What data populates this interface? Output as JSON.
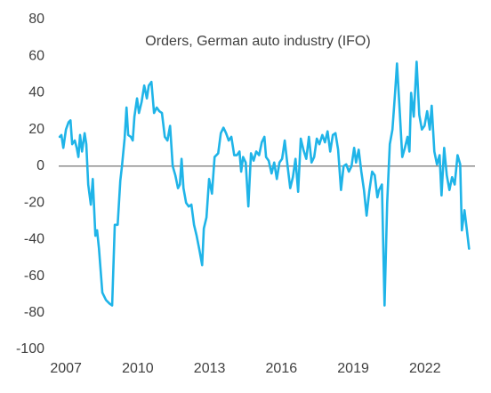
{
  "chart_data": {
    "type": "line",
    "title": "Orders, German auto industry (IFO)",
    "xlim": [
      2006.4,
      2024.2
    ],
    "xticks": [
      2007,
      2010,
      2013,
      2016,
      2019,
      2022
    ],
    "ylim": [
      -100,
      80
    ],
    "yticks": [
      -100,
      -80,
      -60,
      -40,
      -20,
      0,
      20,
      40,
      60,
      80
    ],
    "zero_line": true,
    "grid": false,
    "series": [
      {
        "color": "#1fb4e8",
        "x": [
          2006.74,
          2006.81,
          2006.89,
          2007.0,
          2007.11,
          2007.19,
          2007.26,
          2007.37,
          2007.45,
          2007.52,
          2007.59,
          2007.67,
          2007.78,
          2007.85,
          2007.93,
          2008.04,
          2008.12,
          2008.23,
          2008.3,
          2008.38,
          2008.52,
          2008.67,
          2008.82,
          2008.93,
          2009.04,
          2009.16,
          2009.27,
          2009.34,
          2009.45,
          2009.53,
          2009.6,
          2009.71,
          2009.79,
          2009.86,
          2009.97,
          2010.05,
          2010.16,
          2010.27,
          2010.38,
          2010.46,
          2010.57,
          2010.68,
          2010.79,
          2010.9,
          2011.01,
          2011.13,
          2011.24,
          2011.35,
          2011.46,
          2011.57,
          2011.68,
          2011.76,
          2011.83,
          2011.91,
          2012.02,
          2012.13,
          2012.24,
          2012.35,
          2012.46,
          2012.58,
          2012.69,
          2012.76,
          2012.87,
          2012.98,
          2013.1,
          2013.21,
          2013.36,
          2013.47,
          2013.58,
          2013.69,
          2013.8,
          2013.91,
          2014.03,
          2014.14,
          2014.25,
          2014.32,
          2014.4,
          2014.51,
          2014.62,
          2014.73,
          2014.84,
          2014.95,
          2015.07,
          2015.18,
          2015.29,
          2015.36,
          2015.47,
          2015.59,
          2015.7,
          2015.81,
          2015.92,
          2016.03,
          2016.14,
          2016.26,
          2016.37,
          2016.48,
          2016.59,
          2016.7,
          2016.81,
          2016.92,
          2017.04,
          2017.15,
          2017.26,
          2017.37,
          2017.48,
          2017.59,
          2017.71,
          2017.82,
          2017.93,
          2018.04,
          2018.15,
          2018.26,
          2018.37,
          2018.49,
          2018.6,
          2018.71,
          2018.82,
          2018.93,
          2019.04,
          2019.12,
          2019.23,
          2019.34,
          2019.45,
          2019.56,
          2019.67,
          2019.79,
          2019.9,
          2020.01,
          2020.08,
          2020.2,
          2020.31,
          2020.42,
          2020.53,
          2020.64,
          2020.75,
          2020.83,
          2020.94,
          2021.05,
          2021.16,
          2021.27,
          2021.35,
          2021.42,
          2021.53,
          2021.65,
          2021.76,
          2021.87,
          2021.98,
          2022.09,
          2022.2,
          2022.28,
          2022.39,
          2022.5,
          2022.61,
          2022.69,
          2022.8,
          2022.91,
          2023.02,
          2023.13,
          2023.24,
          2023.36,
          2023.47,
          2023.54,
          2023.65,
          2023.76,
          2023.84
        ],
        "values": [
          16,
          17,
          10,
          20,
          24,
          25,
          12,
          14,
          10,
          5,
          17,
          8,
          18,
          12,
          -10,
          -21,
          -7,
          -38,
          -35,
          -45,
          -69,
          -73,
          -75,
          -76,
          -32,
          -32,
          -8,
          0,
          15,
          32,
          17,
          16,
          14,
          27,
          37,
          29,
          35,
          44,
          37,
          44,
          46,
          29,
          32,
          30,
          29,
          16,
          14,
          22,
          0,
          -5,
          -12,
          -10,
          4,
          -12,
          -20,
          -22,
          -21,
          -32,
          -38,
          -46,
          -54,
          -34,
          -28,
          -7,
          -15,
          5,
          7,
          18,
          21,
          18,
          14,
          16,
          6,
          6,
          8,
          -3,
          5,
          2,
          -22,
          7,
          3,
          8,
          6,
          13,
          16,
          5,
          3,
          -4,
          2,
          -7,
          2,
          4,
          14,
          0,
          -12,
          -6,
          4,
          -14,
          15,
          9,
          4,
          16,
          2,
          5,
          15,
          12,
          17,
          13,
          19,
          8,
          17,
          18,
          9,
          -13,
          0,
          1,
          -3,
          0,
          10,
          2,
          9,
          -3,
          -13,
          -27,
          -14,
          -3,
          -5,
          -17,
          -13,
          -10,
          -76,
          -20,
          12,
          20,
          40,
          56,
          31,
          5,
          10,
          16,
          8,
          40,
          27,
          57,
          28,
          20,
          22,
          30,
          20,
          33,
          8,
          1,
          6,
          -16,
          10,
          -5,
          -13,
          -6,
          -10,
          6,
          1,
          -35,
          -24,
          -36,
          -45
        ]
      }
    ]
  }
}
